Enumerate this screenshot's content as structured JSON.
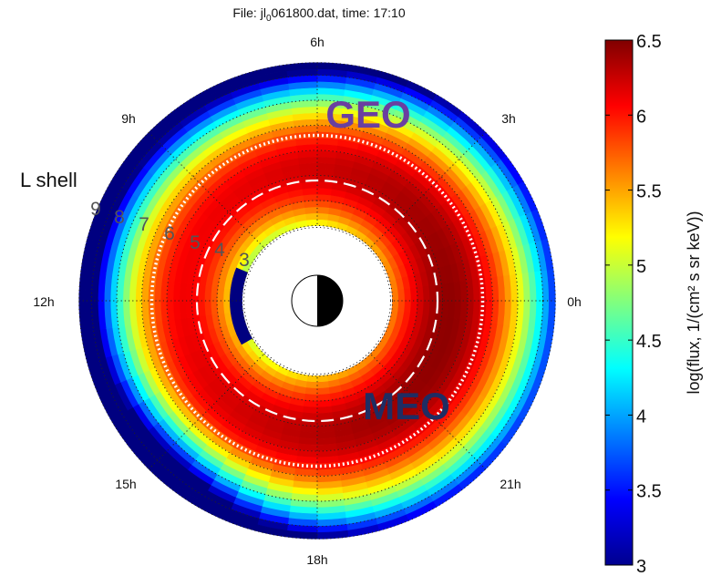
{
  "chart_data": {
    "type": "heatmap",
    "projection": "polar",
    "title_prefix": "File: jl",
    "title_sub": "0",
    "title_suffix": "061800.dat, time: 17:10",
    "mlt_labels": [
      "0h",
      "3h",
      "6h",
      "9h",
      "12h",
      "15h",
      "18h",
      "21h"
    ],
    "l_shell_title": "L shell",
    "l_shell_labels": [
      "9",
      "8",
      "7",
      "6",
      "5",
      "4",
      "3"
    ],
    "r_range": [
      3,
      9.5
    ],
    "region_labels": {
      "geo": {
        "text": "GEO",
        "color": "#6a3fa0"
      },
      "meo": {
        "text": "MEO",
        "color": "#1f2d63"
      }
    },
    "reference_rings": {
      "geo_L": 6.6,
      "meo_L": 4.8
    },
    "colorbar": {
      "label": "log(flux, 1/(cm² s sr keV))",
      "min": 3,
      "max": 6.5,
      "ticks": [
        "3",
        "3.5",
        "4",
        "4.5",
        "5",
        "5.5",
        "6",
        "6.5"
      ],
      "colormap": "jet"
    },
    "grid": true
  }
}
